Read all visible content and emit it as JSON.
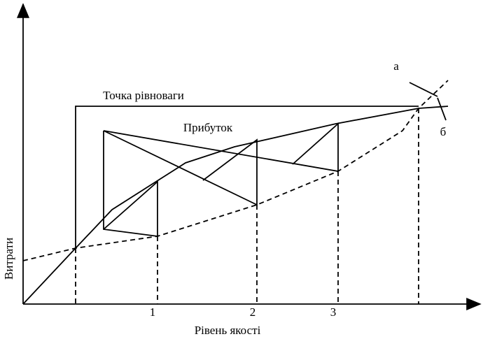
{
  "axes": {
    "y_label": "Витрати",
    "x_label": "Рівень якості",
    "x_ticks": [
      "1",
      "2",
      "3"
    ]
  },
  "annotations": {
    "equilibrium": "Точка рівноваги",
    "profit": "Прибуток",
    "curve_a": "а",
    "curve_b": "б"
  }
}
